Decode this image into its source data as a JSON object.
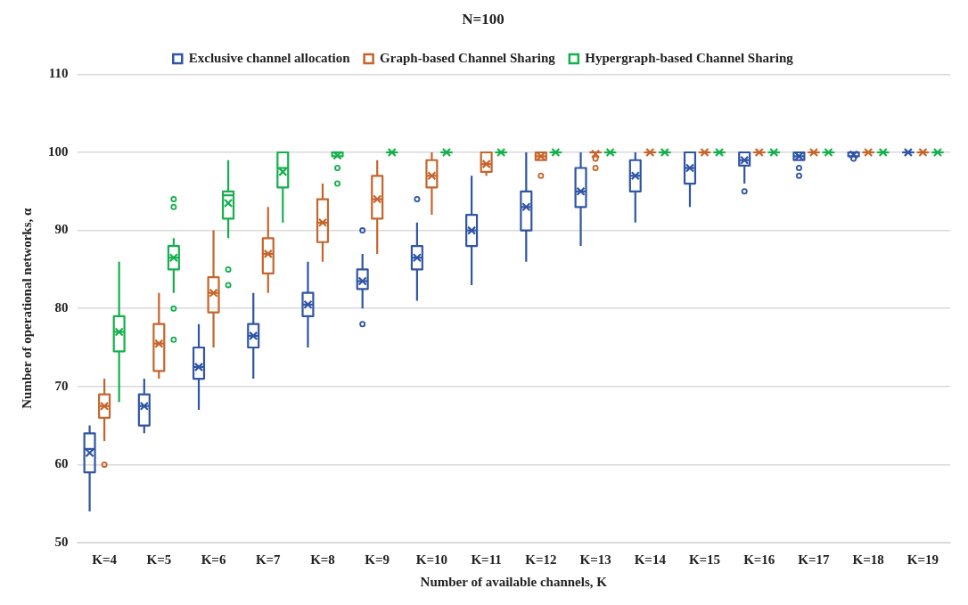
{
  "chart_data": {
    "type": "box",
    "title": "N=100",
    "xlabel": "Number of available channels, K",
    "ylabel": "Number of operational networks, α",
    "categories": [
      "K=4",
      "K=5",
      "K=6",
      "K=7",
      "K=8",
      "K=9",
      "K=10",
      "K=11",
      "K=12",
      "K=13",
      "K=14",
      "K=15",
      "K=16",
      "K=17",
      "K=18",
      "K=19"
    ],
    "ylim": [
      50,
      110
    ],
    "yticks": [
      50,
      60,
      70,
      80,
      90,
      100,
      110
    ],
    "grid": "y",
    "legend": "top",
    "series": [
      {
        "name": "Exclusive channel allocation",
        "color": "#2f55a4",
        "boxes": [
          {
            "low": 54,
            "q1": 59,
            "median": 62,
            "q3": 64,
            "high": 65,
            "mean": 61.5
          },
          {
            "low": 64,
            "q1": 65,
            "median": 67.5,
            "q3": 69,
            "high": 71,
            "mean": 67.5
          },
          {
            "low": 67,
            "q1": 71,
            "median": 72.5,
            "q3": 75,
            "high": 78,
            "mean": 72.5
          },
          {
            "low": 71,
            "q1": 75,
            "median": 76.5,
            "q3": 78,
            "high": 82,
            "mean": 76.5
          },
          {
            "low": 75,
            "q1": 79,
            "median": 80.5,
            "q3": 82,
            "high": 86,
            "mean": 80.5
          },
          {
            "low": 80,
            "q1": 82.5,
            "median": 83.5,
            "q3": 85,
            "high": 87,
            "mean": 83.5,
            "outliers": [
              90,
              78
            ]
          },
          {
            "low": 81,
            "q1": 85,
            "median": 86.5,
            "q3": 88,
            "high": 91,
            "mean": 86.5,
            "outliers": [
              94
            ]
          },
          {
            "low": 83,
            "q1": 88,
            "median": 90,
            "q3": 92,
            "high": 97,
            "mean": 90
          },
          {
            "low": 86,
            "q1": 90,
            "median": 93,
            "q3": 95,
            "high": 100,
            "mean": 93
          },
          {
            "low": 88,
            "q1": 93,
            "median": 95,
            "q3": 98,
            "high": 100,
            "mean": 95
          },
          {
            "low": 91,
            "q1": 95,
            "median": 97,
            "q3": 99,
            "high": 100,
            "mean": 97
          },
          {
            "low": 93,
            "q1": 96,
            "median": 98,
            "q3": 100,
            "high": 100,
            "mean": 98
          },
          {
            "low": 96,
            "q1": 98.3,
            "median": 99,
            "q3": 100,
            "high": 100,
            "mean": 99,
            "outliers": [
              95
            ]
          },
          {
            "low": 99,
            "q1": 99,
            "median": 99.5,
            "q3": 100,
            "high": 100,
            "mean": 99.5,
            "outliers": [
              98,
              97
            ]
          },
          {
            "low": 99.5,
            "q1": 99.5,
            "median": 100,
            "q3": 100,
            "high": 100,
            "mean": 99.7,
            "outliers": [
              99.2
            ]
          },
          {
            "low": 100,
            "q1": 100,
            "median": 100,
            "q3": 100,
            "high": 100,
            "mean": 100
          }
        ]
      },
      {
        "name": "Graph-based Channel Sharing",
        "color": "#c5652b",
        "boxes": [
          {
            "low": 63,
            "q1": 66,
            "median": 67.5,
            "q3": 69,
            "high": 71,
            "mean": 67.5,
            "outliers": [
              60
            ]
          },
          {
            "low": 71,
            "q1": 72,
            "median": 75.5,
            "q3": 78,
            "high": 82,
            "mean": 75.5
          },
          {
            "low": 75,
            "q1": 79.5,
            "median": 82,
            "q3": 84,
            "high": 90,
            "mean": 82
          },
          {
            "low": 82,
            "q1": 84.5,
            "median": 87,
            "q3": 89,
            "high": 93,
            "mean": 87
          },
          {
            "low": 86,
            "q1": 88.5,
            "median": 91,
            "q3": 94,
            "high": 96,
            "mean": 91
          },
          {
            "low": 87,
            "q1": 91.5,
            "median": 94,
            "q3": 97,
            "high": 99,
            "mean": 94
          },
          {
            "low": 92,
            "q1": 95.5,
            "median": 97,
            "q3": 99,
            "high": 100,
            "mean": 97
          },
          {
            "low": 97,
            "q1": 97.5,
            "median": 98.5,
            "q3": 100,
            "high": 100,
            "mean": 98.5
          },
          {
            "low": 99,
            "q1": 99,
            "median": 99.5,
            "q3": 100,
            "high": 100,
            "mean": 99.5,
            "outliers": [
              97
            ]
          },
          {
            "low": 100,
            "q1": 100,
            "median": 100,
            "q3": 100,
            "high": 100,
            "mean": 99.8,
            "outliers": [
              99.2,
              98
            ]
          },
          {
            "low": 100,
            "q1": 100,
            "median": 100,
            "q3": 100,
            "high": 100,
            "mean": 100
          },
          {
            "low": 100,
            "q1": 100,
            "median": 100,
            "q3": 100,
            "high": 100,
            "mean": 100
          },
          {
            "low": 100,
            "q1": 100,
            "median": 100,
            "q3": 100,
            "high": 100,
            "mean": 100
          },
          {
            "low": 100,
            "q1": 100,
            "median": 100,
            "q3": 100,
            "high": 100,
            "mean": 100
          },
          {
            "low": 100,
            "q1": 100,
            "median": 100,
            "q3": 100,
            "high": 100,
            "mean": 100
          },
          {
            "low": 100,
            "q1": 100,
            "median": 100,
            "q3": 100,
            "high": 100,
            "mean": 100
          }
        ]
      },
      {
        "name": "Hypergraph-based Channel Sharing",
        "color": "#14b04c",
        "boxes": [
          {
            "low": 68,
            "q1": 74.5,
            "median": 77,
            "q3": 79,
            "high": 86,
            "mean": 77
          },
          {
            "low": 82,
            "q1": 85,
            "median": 86.5,
            "q3": 88,
            "high": 89,
            "mean": 86.5,
            "outliers": [
              94,
              93,
              80,
              76
            ]
          },
          {
            "low": 89,
            "q1": 91.5,
            "median": 94.5,
            "q3": 95,
            "high": 99,
            "mean": 93.5,
            "outliers": [
              85,
              83
            ]
          },
          {
            "low": 91,
            "q1": 95.5,
            "median": 98,
            "q3": 100,
            "high": 100,
            "mean": 97.5
          },
          {
            "low": 99.5,
            "q1": 99.5,
            "median": 100,
            "q3": 100,
            "high": 100,
            "mean": 99.6,
            "outliers": [
              98,
              96
            ]
          },
          {
            "low": 100,
            "q1": 100,
            "median": 100,
            "q3": 100,
            "high": 100,
            "mean": 100
          },
          {
            "low": 100,
            "q1": 100,
            "median": 100,
            "q3": 100,
            "high": 100,
            "mean": 100
          },
          {
            "low": 100,
            "q1": 100,
            "median": 100,
            "q3": 100,
            "high": 100,
            "mean": 100
          },
          {
            "low": 100,
            "q1": 100,
            "median": 100,
            "q3": 100,
            "high": 100,
            "mean": 100
          },
          {
            "low": 100,
            "q1": 100,
            "median": 100,
            "q3": 100,
            "high": 100,
            "mean": 100
          },
          {
            "low": 100,
            "q1": 100,
            "median": 100,
            "q3": 100,
            "high": 100,
            "mean": 100
          },
          {
            "low": 100,
            "q1": 100,
            "median": 100,
            "q3": 100,
            "high": 100,
            "mean": 100
          },
          {
            "low": 100,
            "q1": 100,
            "median": 100,
            "q3": 100,
            "high": 100,
            "mean": 100
          },
          {
            "low": 100,
            "q1": 100,
            "median": 100,
            "q3": 100,
            "high": 100,
            "mean": 100
          },
          {
            "low": 100,
            "q1": 100,
            "median": 100,
            "q3": 100,
            "high": 100,
            "mean": 100
          },
          {
            "low": 100,
            "q1": 100,
            "median": 100,
            "q3": 100,
            "high": 100,
            "mean": 100
          }
        ]
      }
    ]
  }
}
